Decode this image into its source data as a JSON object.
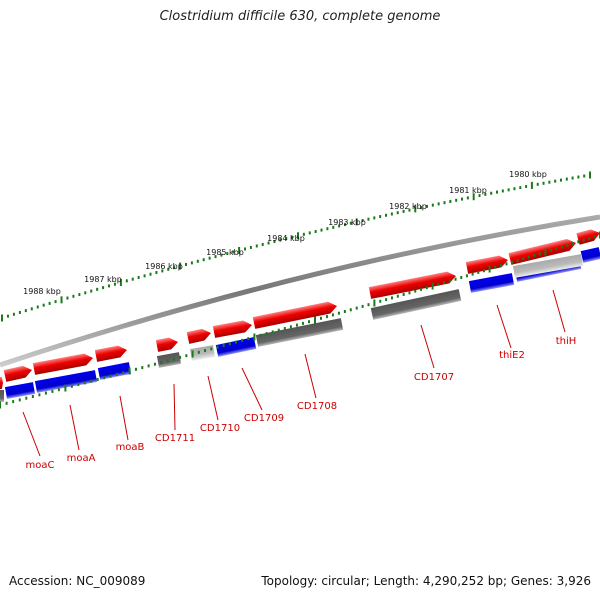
{
  "title": "Clostridium difficile 630, complete genome",
  "footer": {
    "accession": "Accession: NC_009089",
    "summary": "Topology: circular; Length: 4,290,252 bp; Genes: 3,926"
  },
  "scale_labels": [
    "1980 kbp",
    "1981 kbp",
    "1982 kbp",
    "1983 kbp",
    "1984 kbp",
    "1985 kbp",
    "1986 kbp",
    "1987 kbp",
    "1988 kbp"
  ],
  "gene_labels": [
    "moaC",
    "moaA",
    "moaB",
    "CD1711",
    "CD1710",
    "CD1709",
    "CD1708",
    "CD1707",
    "thiE2",
    "thiH"
  ],
  "colors": {
    "forward": "#ee0000",
    "cds": "#0000dd",
    "gene_dark": "#666666",
    "gene_light": "#bbbbbb",
    "backbone": "#888888",
    "ticks": "#1a7a1a",
    "label": "#cc0000"
  }
}
